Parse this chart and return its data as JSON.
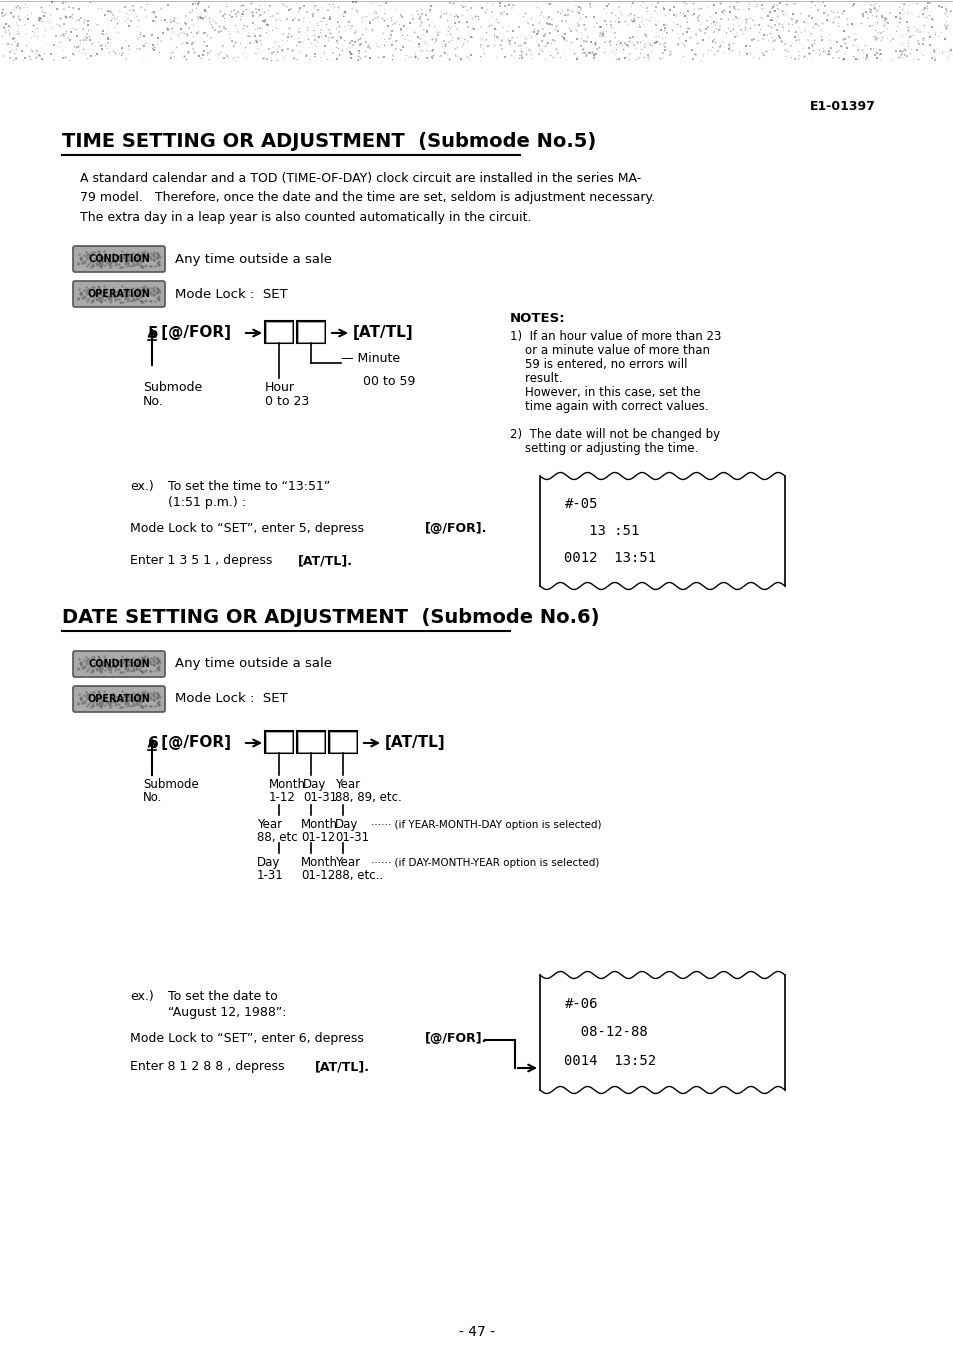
{
  "title1": "TIME SETTING OR ADJUSTMENT  (Submode No.5)",
  "title2": "DATE SETTING OR ADJUSTMENT  (Submode No.6)",
  "doc_id": "E1-01397",
  "page_num": "- 47 -",
  "intro_text": "A standard calendar and a TOD (TIME-OF-DAY) clock circuit are installed in the series MA-\n79 model.   Therefore, once the date and the time are set, seldom is adjustment necessary.\nThe extra day in a leap year is also counted automatically in the circuit.",
  "condition_label": "CONDITION",
  "operation_label": "OPERATION",
  "condition_text1": "Any time outside a sale",
  "operation_text1": "Mode Lock :  SET",
  "condition_text2": "Any time outside a sale",
  "operation_text2": "Mode Lock :  SET",
  "notes_title": "NOTES:",
  "note1a": "1)  If an hour value of more than 23",
  "note1b": "    or a minute value of more than",
  "note1c": "    59 is entered, no errors will",
  "note1d": "    result.",
  "note1e": "    However, in this case, set the",
  "note1f": "    time again with correct values.",
  "note2a": "2)  The date will not be changed by",
  "note2b": "    setting or adjusting the time.",
  "ex_time_label": "ex.)",
  "ex_time_text1": "To set the time to “13:51”",
  "ex_time_text2": "(1:51 p.m.) :",
  "ex_time_step1a": "Mode Lock to “SET”, enter 5, depress ",
  "ex_time_step1b": "[@/FOR].",
  "ex_time_step2a": "Enter 1 3 5 1 , depress ",
  "ex_time_step2b": "[AT/TL].",
  "receipt1_line1": "#-05",
  "receipt1_line2": "   13 :51",
  "receipt1_line3": "0012  13:51",
  "ex_date_label": "ex.)",
  "ex_date_text1": "To set the date to",
  "ex_date_text2": "“August 12, 1988”:",
  "ex_date_step1a": "Mode Lock to “SET”, enter 6, depress ",
  "ex_date_step1b": "[@/FOR].",
  "ex_date_step2a": "Enter 8 1 2 8 8 , depress ",
  "ex_date_step2b": "[AT/TL].",
  "receipt2_line1": "#-06",
  "receipt2_line2": "  08-12-88",
  "receipt2_line3": "0014  13:52",
  "date_note2": "······ (if YEAR-MONTH-DAY option is selected)",
  "date_note3": "······ (if DAY-MONTH-YEAR option is selected)",
  "bg_color": "#ffffff"
}
